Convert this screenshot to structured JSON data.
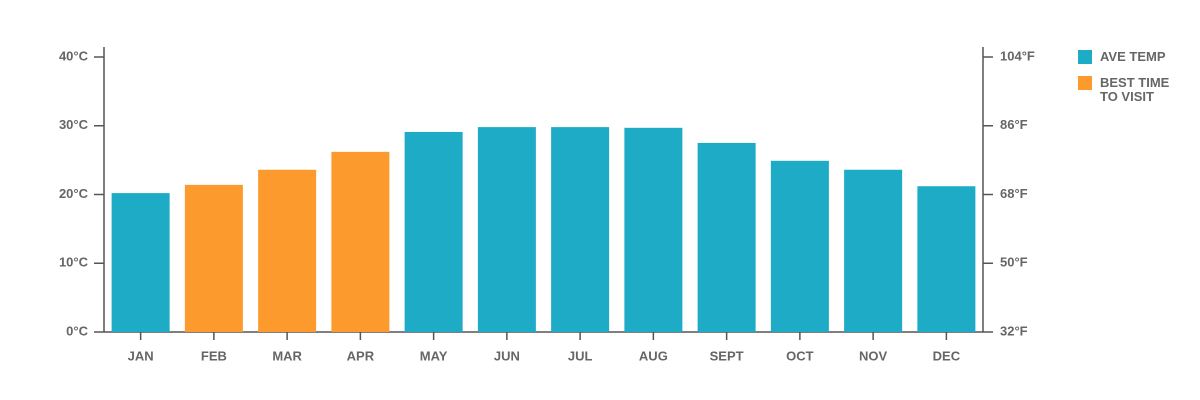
{
  "chart_data": {
    "type": "bar",
    "categories": [
      "JAN",
      "FEB",
      "MAR",
      "APR",
      "MAY",
      "JUN",
      "JUL",
      "AUG",
      "SEPT",
      "OCT",
      "NOV",
      "DEC"
    ],
    "series": [
      {
        "name": "AVE TEMP",
        "color": "#1dabc6",
        "values": [
          20.2,
          null,
          null,
          null,
          29.1,
          29.8,
          29.8,
          29.7,
          27.5,
          24.9,
          23.6,
          21.2
        ]
      },
      {
        "name": "BEST TIME TO VISIT",
        "color": "#fd9a2e",
        "values": [
          null,
          21.4,
          23.6,
          26.2,
          null,
          null,
          null,
          null,
          null,
          null,
          null,
          null
        ]
      }
    ],
    "ylim": [
      0,
      40
    ],
    "yticks": [
      {
        "value": 0,
        "label": "0°C"
      },
      {
        "value": 10,
        "label": "10°C"
      },
      {
        "value": 20,
        "label": "20°C"
      },
      {
        "value": 30,
        "label": "30°C"
      },
      {
        "value": 40,
        "label": "40°C"
      }
    ],
    "y2lim": [
      32,
      104
    ],
    "y2ticks": [
      {
        "value": 32,
        "label": "32°F"
      },
      {
        "value": 50,
        "label": "50°F"
      },
      {
        "value": 68,
        "label": "68°F"
      },
      {
        "value": 86,
        "label": "86°F"
      },
      {
        "value": 104,
        "label": "104°F"
      }
    ]
  }
}
